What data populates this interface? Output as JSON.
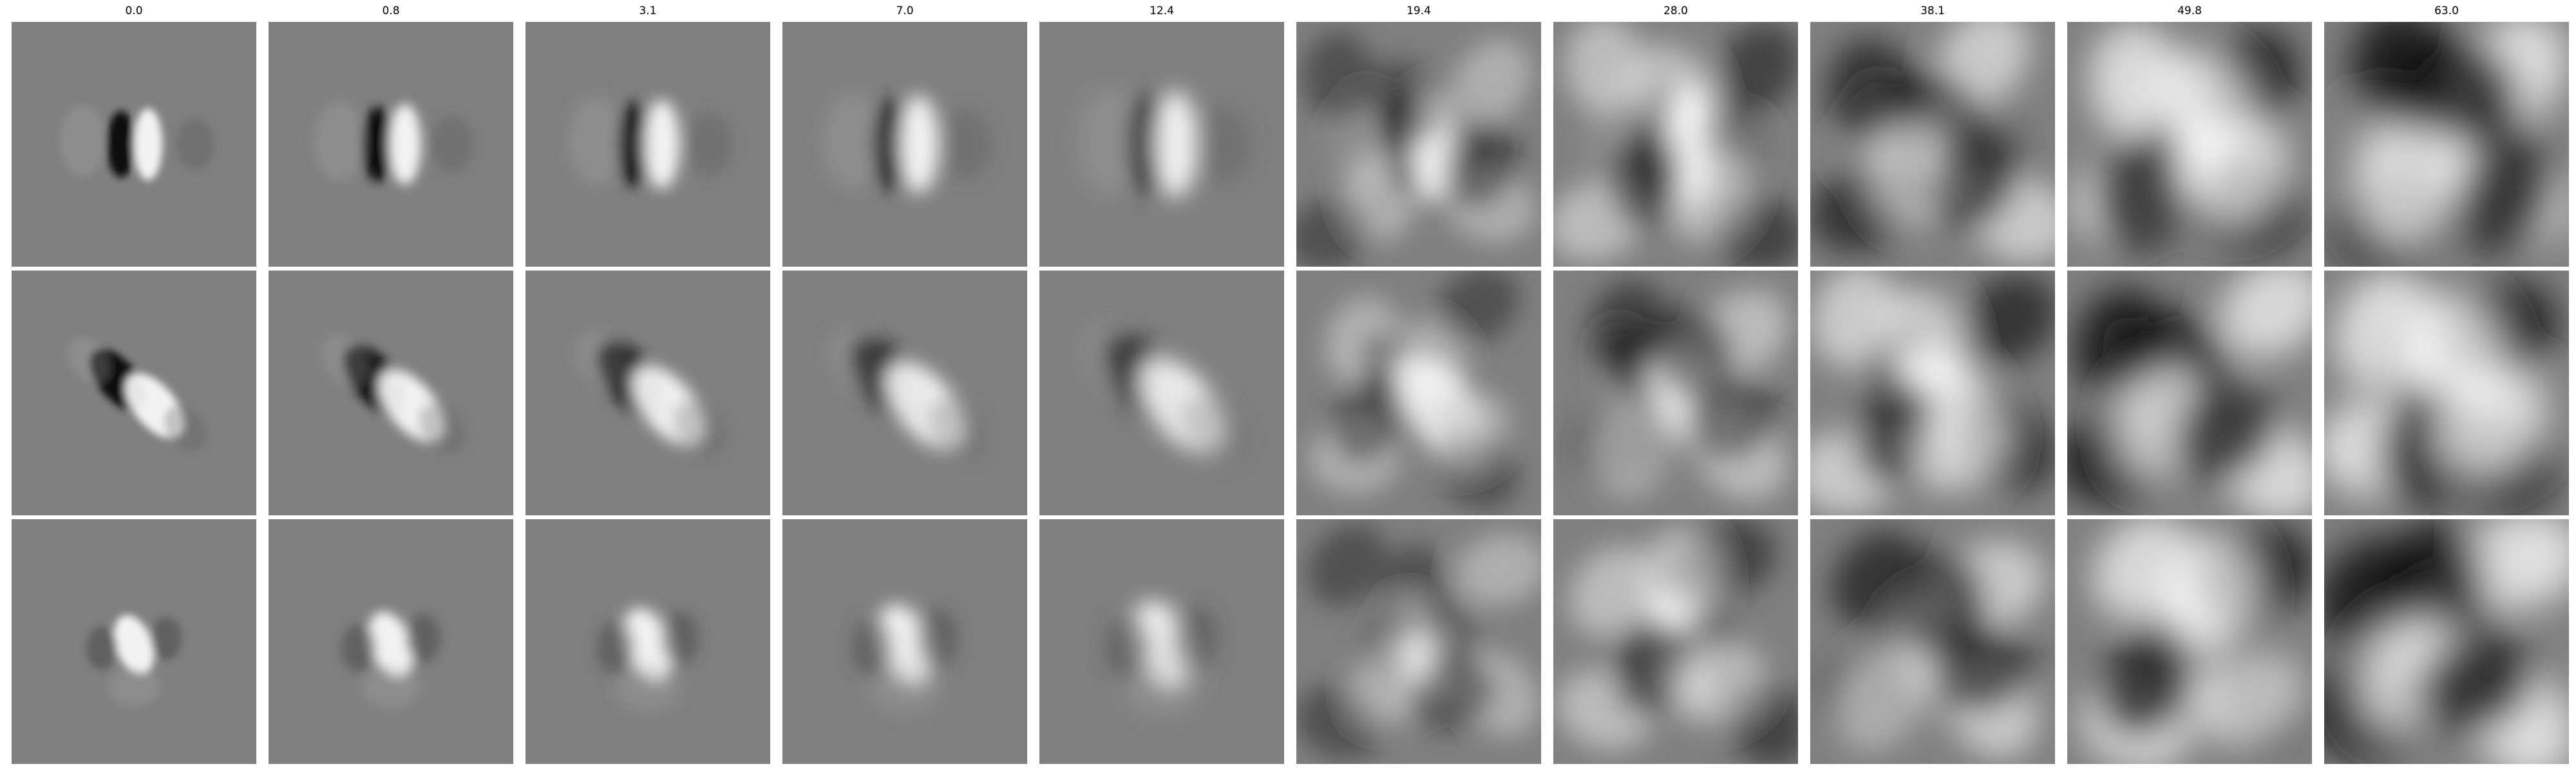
{
  "figure": {
    "column_titles": [
      "0.0",
      "0.8",
      "3.1",
      "7.0",
      "12.4",
      "19.4",
      "28.0",
      "38.1",
      "49.8",
      "63.0"
    ],
    "rows": 3,
    "colormap": "grayscale",
    "background_gray": "#808080",
    "rows_content": [
      {
        "name": "filter-row-1",
        "orientation": "vertical dark-light pair, left lobe dark"
      },
      {
        "name": "filter-row-2",
        "orientation": "diagonal dark-light pair, top-left to bottom-right"
      },
      {
        "name": "filter-row-3",
        "orientation": "bright blob flanked by darker lobes"
      }
    ]
  }
}
